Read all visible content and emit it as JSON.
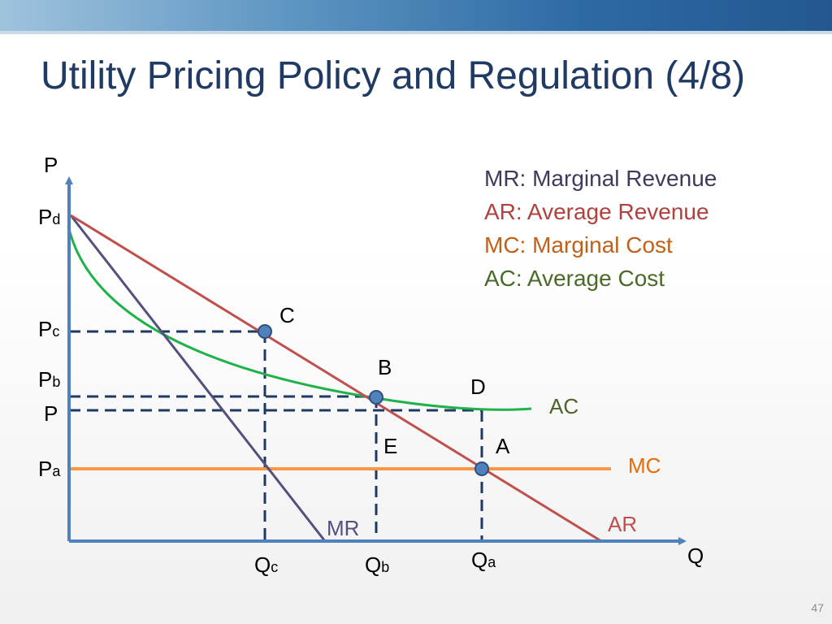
{
  "slide": {
    "title": "Utility Pricing Policy and Regulation (4/8)",
    "number": "47"
  },
  "legend": [
    {
      "text": "MR: Marginal Revenue",
      "color": "#3c3c5a"
    },
    {
      "text": "AR: Average Revenue",
      "color": "#b0413e"
    },
    {
      "text": "MC: Marginal Cost",
      "color": "#c0601a"
    },
    {
      "text": "AC: Average Cost",
      "color": "#4a6a2a"
    }
  ],
  "axes": {
    "y_label": "P",
    "x_label": "Q"
  },
  "price_ticks": {
    "pd": {
      "main": "P",
      "sub": "d"
    },
    "pc": {
      "main": "P",
      "sub": "c"
    },
    "pb": {
      "main": "P",
      "sub": "b"
    },
    "p": {
      "main": "P",
      "sub": ""
    },
    "pa": {
      "main": "P",
      "sub": "a"
    }
  },
  "quantity_ticks": {
    "qc": {
      "main": "Q",
      "sub": "c"
    },
    "qb": {
      "main": "Q",
      "sub": "b"
    },
    "qa": {
      "main": "Q",
      "sub": "a"
    }
  },
  "curves": {
    "mr": {
      "label": "MR",
      "color": "#54507e"
    },
    "ar": {
      "label": "AR",
      "color": "#c0504d"
    },
    "mc": {
      "label": "MC",
      "color": "#f79646",
      "label_color": "#e46c0a"
    },
    "ac": {
      "label": "AC",
      "color": "#1fb24a",
      "label_color": "#4f6228"
    }
  },
  "points": {
    "c": "C",
    "b": "B",
    "d": "D",
    "e": "E",
    "a": "A"
  },
  "colors": {
    "axis": "#4f81bd",
    "guide": "#1f3864",
    "point_fill": "#4f81bd",
    "point_stroke": "#2f4f7f"
  }
}
